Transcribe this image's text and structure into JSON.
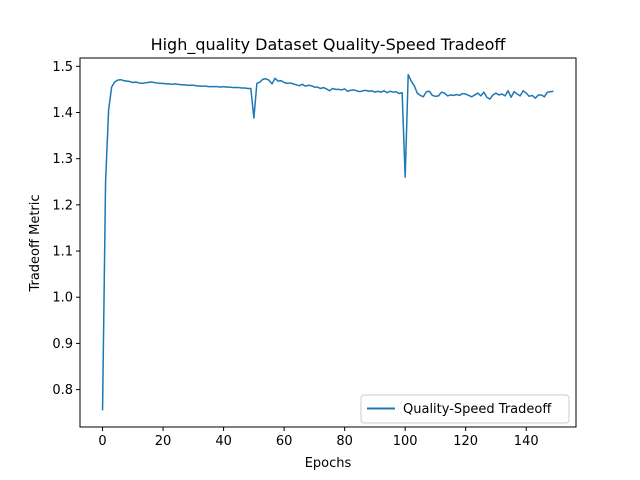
{
  "chart_data": {
    "type": "line",
    "title": "High_quality Dataset Quality-Speed Tradeoff",
    "xlabel": "Epochs",
    "ylabel": "Tradeoff Metric",
    "xlim": [
      -7.45,
      156.45
    ],
    "ylim": [
      0.719,
      1.518
    ],
    "xticks": [
      0,
      20,
      40,
      60,
      80,
      100,
      120,
      140
    ],
    "yticks": [
      0.8,
      0.9,
      1.0,
      1.1,
      1.2,
      1.3,
      1.4,
      1.5
    ],
    "ytick_labels": [
      "0.8",
      "0.9",
      "1.0",
      "1.1",
      "1.2",
      "1.3",
      "1.4",
      "1.5"
    ],
    "legend_position": "lower-right",
    "grid": false,
    "color": "#1f77b4",
    "series": [
      {
        "name": "Quality-Speed Tradeoff",
        "x": [
          0,
          1,
          2,
          3,
          4,
          5,
          6,
          7,
          8,
          9,
          10,
          11,
          12,
          13,
          14,
          15,
          16,
          17,
          18,
          19,
          20,
          21,
          22,
          23,
          24,
          25,
          26,
          27,
          28,
          29,
          30,
          31,
          32,
          33,
          34,
          35,
          36,
          37,
          38,
          39,
          40,
          41,
          42,
          43,
          44,
          45,
          46,
          47,
          48,
          49,
          50,
          51,
          52,
          53,
          54,
          55,
          56,
          57,
          58,
          59,
          60,
          61,
          62,
          63,
          64,
          65,
          66,
          67,
          68,
          69,
          70,
          71,
          72,
          73,
          74,
          75,
          76,
          77,
          78,
          79,
          80,
          81,
          82,
          83,
          84,
          85,
          86,
          87,
          88,
          89,
          90,
          91,
          92,
          93,
          94,
          95,
          96,
          97,
          98,
          99,
          100,
          101,
          102,
          103,
          104,
          105,
          106,
          107,
          108,
          109,
          110,
          111,
          112,
          113,
          114,
          115,
          116,
          117,
          118,
          119,
          120,
          121,
          122,
          123,
          124,
          125,
          126,
          127,
          128,
          129,
          130,
          131,
          132,
          133,
          134,
          135,
          136,
          137,
          138,
          139,
          140,
          141,
          142,
          143,
          144,
          145,
          146,
          147,
          148,
          149
        ],
        "values": [
          0.755,
          1.25,
          1.405,
          1.455,
          1.466,
          1.47,
          1.471,
          1.469,
          1.468,
          1.467,
          1.465,
          1.466,
          1.464,
          1.463,
          1.464,
          1.465,
          1.466,
          1.465,
          1.464,
          1.463,
          1.463,
          1.462,
          1.462,
          1.461,
          1.462,
          1.461,
          1.46,
          1.46,
          1.459,
          1.459,
          1.459,
          1.458,
          1.457,
          1.457,
          1.457,
          1.456,
          1.456,
          1.456,
          1.456,
          1.455,
          1.456,
          1.455,
          1.455,
          1.454,
          1.454,
          1.454,
          1.453,
          1.453,
          1.452,
          1.452,
          1.388,
          1.463,
          1.466,
          1.472,
          1.473,
          1.47,
          1.462,
          1.474,
          1.468,
          1.469,
          1.465,
          1.463,
          1.464,
          1.462,
          1.46,
          1.458,
          1.461,
          1.457,
          1.459,
          1.458,
          1.455,
          1.455,
          1.452,
          1.454,
          1.451,
          1.447,
          1.452,
          1.45,
          1.45,
          1.449,
          1.451,
          1.446,
          1.448,
          1.449,
          1.447,
          1.445,
          1.447,
          1.448,
          1.446,
          1.447,
          1.444,
          1.446,
          1.444,
          1.447,
          1.443,
          1.446,
          1.444,
          1.445,
          1.441,
          1.443,
          1.26,
          1.482,
          1.468,
          1.458,
          1.442,
          1.437,
          1.434,
          1.445,
          1.446,
          1.437,
          1.435,
          1.436,
          1.444,
          1.442,
          1.436,
          1.438,
          1.437,
          1.439,
          1.437,
          1.441,
          1.44,
          1.437,
          1.434,
          1.438,
          1.442,
          1.436,
          1.444,
          1.433,
          1.429,
          1.438,
          1.442,
          1.438,
          1.44,
          1.436,
          1.447,
          1.433,
          1.445,
          1.44,
          1.436,
          1.447,
          1.442,
          1.435,
          1.437,
          1.431,
          1.438,
          1.438,
          1.434,
          1.444,
          1.445,
          1.446
        ]
      }
    ]
  }
}
